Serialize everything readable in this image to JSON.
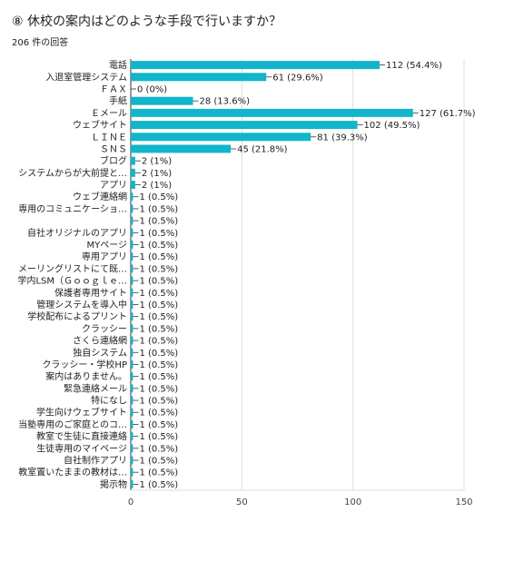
{
  "header": {
    "title": "⑧ 休校の案内はどのような手段で行いますか？",
    "subtitle": "206 件の回答"
  },
  "chart_data": {
    "type": "bar",
    "orientation": "horizontal",
    "title": "⑧ 休校の案内はどのような手段で行いますか？",
    "categories": [
      "電話",
      "入退室管理システム",
      "ＦＡＸ",
      "手紙",
      "Ｅメール",
      "ウェブサイト",
      "ＬＩＮＥ",
      "ＳＮＳ",
      "ブログ",
      "システムからが大前提と…",
      "アプリ",
      "ウェブ連絡網",
      "専用のコミュニケーショ…",
      "",
      "自社オリジナルのアプリ",
      "MYページ",
      "専用アプリ",
      "メーリングリストにて既…",
      "学内LSM（Ｇｏｏｇｌｅ…",
      "保護者専用サイト",
      "管理システムを導入中",
      "学校配布によるプリント",
      "クラッシー",
      "さくら連絡網",
      "独自システム",
      "クラッシー・学校HP",
      "案内はありません。",
      "緊急連絡メール",
      "特になし",
      "学生向けウェブサイト",
      "当塾専用のご家庭とのコ…",
      "教室で生徒に直接連絡",
      "生徒専用のマイページ",
      "自社制作アプリ",
      "教室置いたままの教材は…",
      "掲示物"
    ],
    "values": [
      112,
      61,
      0,
      28,
      127,
      102,
      81,
      45,
      2,
      2,
      2,
      1,
      1,
      1,
      1,
      1,
      1,
      1,
      1,
      1,
      1,
      1,
      1,
      1,
      1,
      1,
      1,
      1,
      1,
      1,
      1,
      1,
      1,
      1,
      1,
      1
    ],
    "value_labels": [
      "112 (54.4%)",
      "61 (29.6%)",
      "0 (0%)",
      "28 (13.6%)",
      "127 (61.7%)",
      "102 (49.5%)",
      "81 (39.3%)",
      "45 (21.8%)",
      "2 (1%)",
      "2 (1%)",
      "2 (1%)",
      "1 (0.5%)",
      "1 (0.5%)",
      "1 (0.5%)",
      "1 (0.5%)",
      "1 (0.5%)",
      "1 (0.5%)",
      "1 (0.5%)",
      "1 (0.5%)",
      "1 (0.5%)",
      "1 (0.5%)",
      "1 (0.5%)",
      "1 (0.5%)",
      "1 (0.5%)",
      "1 (0.5%)",
      "1 (0.5%)",
      "1 (0.5%)",
      "1 (0.5%)",
      "1 (0.5%)",
      "1 (0.5%)",
      "1 (0.5%)",
      "1 (0.5%)",
      "1 (0.5%)",
      "1 (0.5%)",
      "1 (0.5%)",
      "1 (0.5%)"
    ],
    "xlim": [
      0,
      150
    ],
    "xticks": [
      0,
      50,
      100,
      150
    ],
    "grid": true,
    "legend": "none",
    "bar_color": "#12b5cb"
  }
}
